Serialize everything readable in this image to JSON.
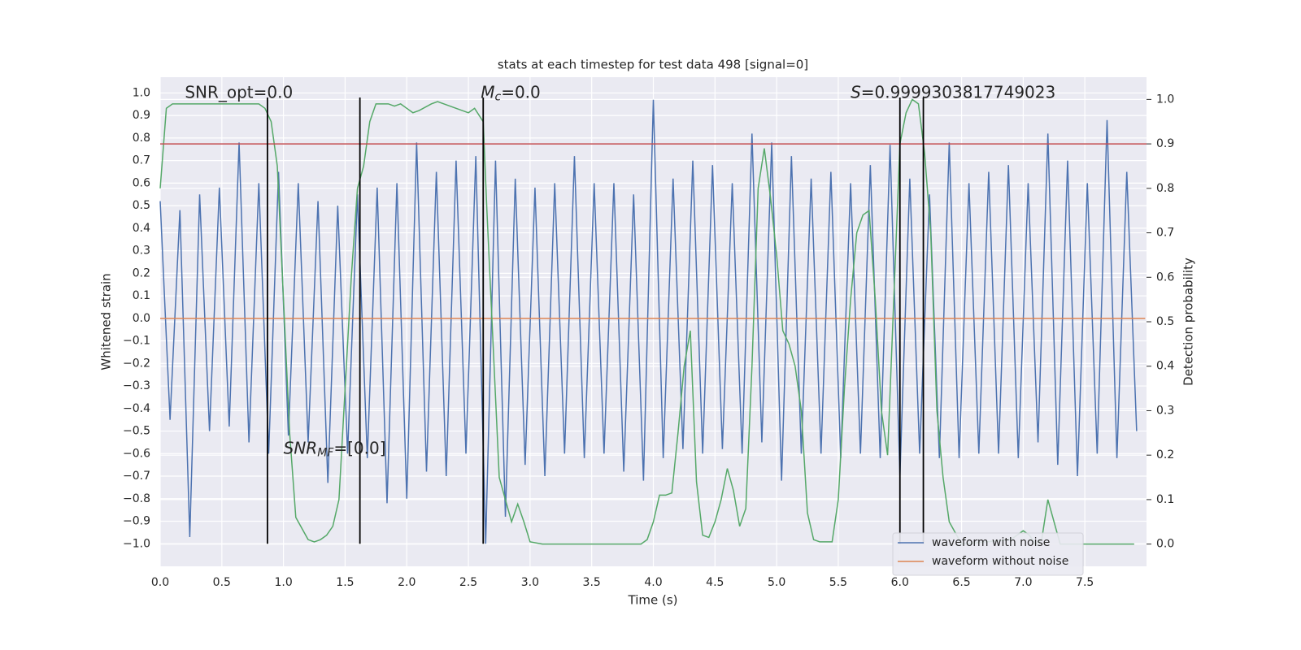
{
  "chart_data": {
    "type": "line",
    "title": "stats at each timestep for test data 498 [signal=0]",
    "xlabel": "Time (s)",
    "ylabel": "Whitened strain",
    "y2label": "Detection probability",
    "xlim": [
      0,
      8
    ],
    "ylim": [
      -1.1,
      1.07
    ],
    "y2lim": [
      -0.05,
      1.05
    ],
    "grid": true,
    "legend": "lower right",
    "xticks": [
      {
        "value": 0,
        "label": "0.0"
      },
      {
        "value": 0.5,
        "label": "0.5"
      },
      {
        "value": 1,
        "label": "1.0"
      },
      {
        "value": 1.5,
        "label": "1.5"
      },
      {
        "value": 2,
        "label": "2.0"
      },
      {
        "value": 2.5,
        "label": "2.5"
      },
      {
        "value": 3,
        "label": "3.0"
      },
      {
        "value": 3.5,
        "label": "3.5"
      },
      {
        "value": 4,
        "label": "4.0"
      },
      {
        "value": 4.5,
        "label": "4.5"
      },
      {
        "value": 5,
        "label": "5.0"
      },
      {
        "value": 5.5,
        "label": "5.5"
      },
      {
        "value": 6,
        "label": "6.0"
      },
      {
        "value": 6.5,
        "label": "6.5"
      },
      {
        "value": 7,
        "label": "7.0"
      },
      {
        "value": 7.5,
        "label": "7.5"
      }
    ],
    "yticks": [
      {
        "value": -1,
        "label": "−1.0"
      },
      {
        "value": -0.9,
        "label": "−0.9"
      },
      {
        "value": -0.8,
        "label": "−0.8"
      },
      {
        "value": -0.7,
        "label": "−0.7"
      },
      {
        "value": -0.6,
        "label": "−0.6"
      },
      {
        "value": -0.5,
        "label": "−0.5"
      },
      {
        "value": -0.4,
        "label": "−0.4"
      },
      {
        "value": -0.3,
        "label": "−0.3"
      },
      {
        "value": -0.2,
        "label": "−0.2"
      },
      {
        "value": -0.1,
        "label": "−0.1"
      },
      {
        "value": 0,
        "label": "0.0"
      },
      {
        "value": 0.1,
        "label": "0.1"
      },
      {
        "value": 0.2,
        "label": "0.2"
      },
      {
        "value": 0.3,
        "label": "0.3"
      },
      {
        "value": 0.4,
        "label": "0.4"
      },
      {
        "value": 0.5,
        "label": "0.5"
      },
      {
        "value": 0.6,
        "label": "0.6"
      },
      {
        "value": 0.7,
        "label": "0.7"
      },
      {
        "value": 0.8,
        "label": "0.8"
      },
      {
        "value": 0.9,
        "label": "0.9"
      },
      {
        "value": 1,
        "label": "1.0"
      }
    ],
    "y2ticks": [
      {
        "value": 0,
        "label": "0.0"
      },
      {
        "value": 0.1,
        "label": "0.1"
      },
      {
        "value": 0.2,
        "label": "0.2"
      },
      {
        "value": 0.3,
        "label": "0.3"
      },
      {
        "value": 0.4,
        "label": "0.4"
      },
      {
        "value": 0.5,
        "label": "0.5"
      },
      {
        "value": 0.6,
        "label": "0.6"
      },
      {
        "value": 0.7,
        "label": "0.7"
      },
      {
        "value": 0.8,
        "label": "0.8"
      },
      {
        "value": 0.9,
        "label": "0.9"
      },
      {
        "value": 1,
        "label": "1.0"
      }
    ],
    "series": [
      {
        "name": "waveform with noise",
        "color": "#4c72b0",
        "x": [
          0,
          0.08,
          0.16,
          0.24,
          0.32,
          0.4,
          0.48,
          0.56,
          0.64,
          0.72,
          0.8,
          0.88,
          0.96,
          1.04,
          1.12,
          1.2,
          1.28,
          1.36,
          1.44,
          1.52,
          1.6,
          1.68,
          1.76,
          1.84,
          1.92,
          2,
          2.08,
          2.16,
          2.24,
          2.32,
          2.4,
          2.48,
          2.56,
          2.64,
          2.72,
          2.8,
          2.88,
          2.96,
          3.04,
          3.12,
          3.2,
          3.28,
          3.36,
          3.44,
          3.52,
          3.6,
          3.68,
          3.76,
          3.84,
          3.92,
          4,
          4.08,
          4.16,
          4.24,
          4.32,
          4.4,
          4.48,
          4.56,
          4.64,
          4.72,
          4.8,
          4.88,
          4.96,
          5.04,
          5.12,
          5.2,
          5.28,
          5.36,
          5.44,
          5.52,
          5.6,
          5.68,
          5.76,
          5.84,
          5.92,
          6,
          6.08,
          6.16,
          6.24,
          6.32,
          6.4,
          6.48,
          6.56,
          6.64,
          6.72,
          6.8,
          6.88,
          6.96,
          7.04,
          7.12,
          7.2,
          7.28,
          7.36,
          7.44,
          7.52,
          7.6,
          7.68,
          7.76,
          7.84,
          7.92
        ],
        "values": [
          0.52,
          -0.45,
          0.48,
          -0.97,
          0.55,
          -0.5,
          0.58,
          -0.48,
          0.78,
          -0.55,
          0.6,
          -0.6,
          0.65,
          -0.52,
          0.6,
          -0.55,
          0.52,
          -0.73,
          0.5,
          -0.6,
          0.55,
          -0.62,
          0.58,
          -0.82,
          0.6,
          -0.8,
          0.78,
          -0.68,
          0.65,
          -0.7,
          0.7,
          -0.6,
          0.72,
          -1.0,
          0.7,
          -0.88,
          0.62,
          -0.65,
          0.58,
          -0.7,
          0.6,
          -0.6,
          0.72,
          -0.62,
          0.6,
          -0.6,
          0.6,
          -0.68,
          0.55,
          -0.72,
          0.97,
          -0.62,
          0.62,
          -0.58,
          0.7,
          -0.6,
          0.68,
          -0.58,
          0.6,
          -0.6,
          0.82,
          -0.55,
          0.78,
          -0.72,
          0.72,
          -0.6,
          0.62,
          -0.6,
          0.65,
          -0.62,
          0.6,
          -0.6,
          0.68,
          -0.62,
          0.77,
          -0.7,
          0.62,
          -0.6,
          0.55,
          -0.62,
          0.78,
          -0.62,
          0.6,
          -0.6,
          0.65,
          -0.6,
          0.68,
          -0.62,
          0.6,
          -0.55,
          0.82,
          -0.65,
          0.7,
          -0.7,
          0.6,
          -0.6,
          0.88,
          -0.62,
          0.65,
          -0.5
        ]
      },
      {
        "name": "waveform without noise",
        "color": "#dd8452",
        "x": [
          0,
          7.99
        ],
        "values": [
          0,
          0
        ]
      },
      {
        "color": "#55a868",
        "axis": "y2",
        "x": [
          0,
          0.05,
          0.1,
          0.8,
          0.85,
          0.9,
          0.95,
          1.0,
          1.05,
          1.1,
          1.2,
          1.25,
          1.3,
          1.35,
          1.4,
          1.45,
          1.5,
          1.55,
          1.6,
          1.65,
          1.7,
          1.75,
          1.85,
          1.9,
          1.95,
          2.0,
          2.05,
          2.1,
          2.2,
          2.25,
          2.3,
          2.4,
          2.5,
          2.55,
          2.62,
          2.65,
          2.7,
          2.75,
          2.8,
          2.85,
          2.9,
          2.95,
          3.0,
          3.1,
          3.5,
          3.9,
          3.95,
          4.0,
          4.05,
          4.1,
          4.15,
          4.2,
          4.25,
          4.3,
          4.35,
          4.4,
          4.45,
          4.5,
          4.55,
          4.6,
          4.65,
          4.7,
          4.75,
          4.8,
          4.85,
          4.9,
          4.95,
          5.0,
          5.05,
          5.1,
          5.15,
          5.2,
          5.25,
          5.3,
          5.35,
          5.45,
          5.5,
          5.55,
          5.6,
          5.65,
          5.7,
          5.75,
          5.8,
          5.85,
          5.9,
          5.95,
          6.0,
          6.05,
          6.1,
          6.15,
          6.2,
          6.25,
          6.3,
          6.35,
          6.4,
          6.5,
          6.9,
          7.0,
          7.05,
          7.1,
          7.15,
          7.2,
          7.25,
          7.3,
          7.9
        ],
        "values": [
          0.8,
          0.98,
          0.99,
          0.99,
          0.98,
          0.95,
          0.85,
          0.55,
          0.25,
          0.06,
          0.01,
          0.005,
          0.01,
          0.02,
          0.04,
          0.1,
          0.35,
          0.6,
          0.8,
          0.85,
          0.95,
          0.99,
          0.99,
          0.985,
          0.99,
          0.98,
          0.97,
          0.975,
          0.99,
          0.995,
          0.99,
          0.98,
          0.97,
          0.98,
          0.95,
          0.75,
          0.45,
          0.15,
          0.1,
          0.05,
          0.09,
          0.05,
          0.005,
          0.0,
          0.0,
          0.0,
          0.01,
          0.05,
          0.11,
          0.11,
          0.115,
          0.25,
          0.4,
          0.48,
          0.14,
          0.02,
          0.015,
          0.05,
          0.1,
          0.17,
          0.12,
          0.04,
          0.08,
          0.4,
          0.8,
          0.89,
          0.78,
          0.65,
          0.48,
          0.45,
          0.4,
          0.3,
          0.07,
          0.01,
          0.005,
          0.005,
          0.1,
          0.35,
          0.55,
          0.7,
          0.74,
          0.75,
          0.55,
          0.3,
          0.2,
          0.55,
          0.9,
          0.97,
          1.0,
          0.99,
          0.88,
          0.7,
          0.3,
          0.15,
          0.05,
          0.0,
          0.01,
          0.03,
          0.02,
          0.0,
          0.01,
          0.1,
          0.05,
          0.0,
          0.0
        ]
      }
    ],
    "threshold": {
      "value": 0.9,
      "color": "#c44e52",
      "axis": "y2"
    },
    "vlines": {
      "x": [
        0.87,
        1.62,
        2.62,
        6.0,
        6.19
      ],
      "ymin": -1.0,
      "ymax": 0.98,
      "color": "#000000"
    },
    "annotations": [
      {
        "x": 0.2,
        "y": 1.0,
        "parts": [
          {
            "text": "SNR_opt=0.0"
          }
        ]
      },
      {
        "x": 2.6,
        "y": 1.0,
        "parts": [
          {
            "text": "M",
            "style": "italic"
          },
          {
            "text": "c",
            "style": "sub"
          },
          {
            "text": "=0.0"
          }
        ]
      },
      {
        "x": 5.6,
        "y": 1.0,
        "parts": [
          {
            "text": "S",
            "style": "italic"
          },
          {
            "text": "=0.9999303817749023"
          }
        ]
      },
      {
        "x": 1.0,
        "y": -0.58,
        "parts": [
          {
            "text": "SNR",
            "style": "italic"
          },
          {
            "text": "MF",
            "style": "sub"
          },
          {
            "text": "=[0.0]"
          }
        ]
      }
    ]
  }
}
